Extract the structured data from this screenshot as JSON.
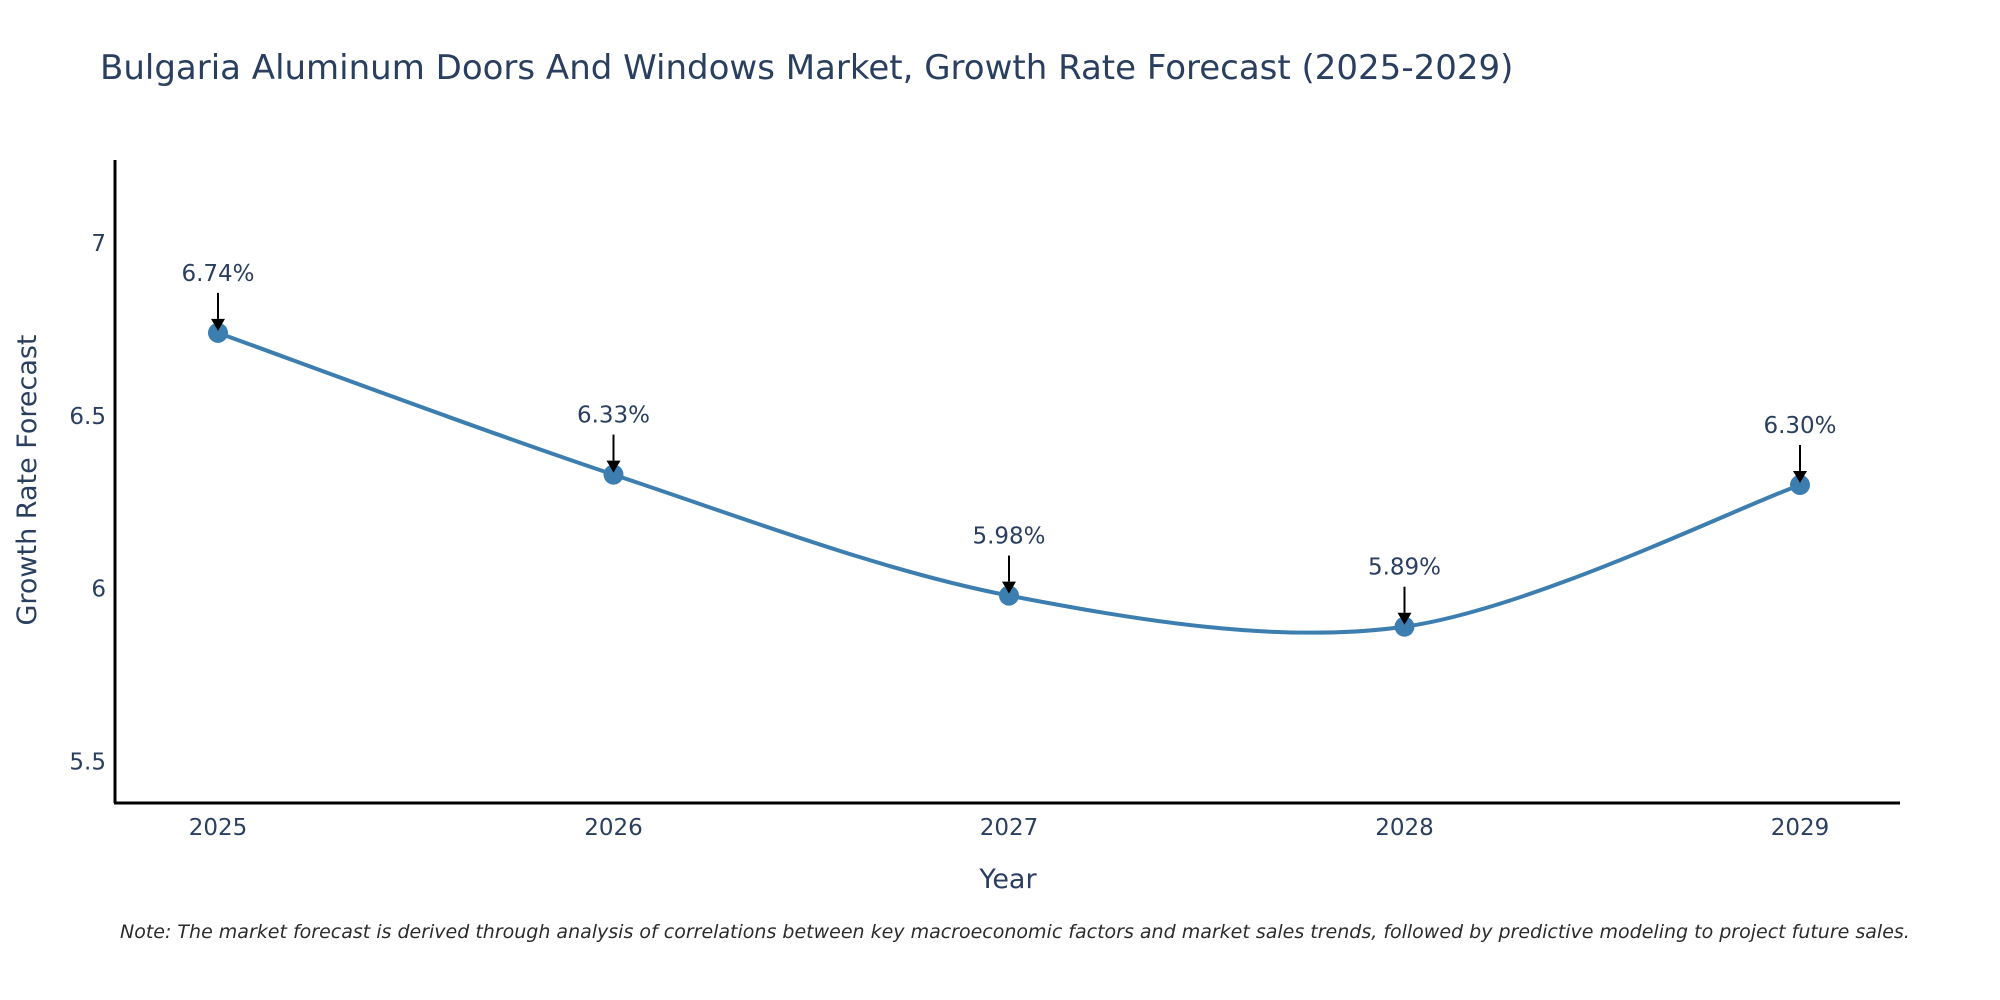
{
  "chart_data": {
    "type": "line",
    "title": "Bulgaria Aluminum Doors And Windows Market, Growth Rate Forecast (2025-2029)",
    "xlabel": "Year",
    "ylabel": "Growth Rate Forecast",
    "x": [
      "2025",
      "2026",
      "2027",
      "2028",
      "2029"
    ],
    "series": [
      {
        "name": "Growth Rate Forecast",
        "values": [
          6.74,
          6.33,
          5.98,
          5.89,
          6.3
        ],
        "labels": [
          "6.74%",
          "6.33%",
          "5.98%",
          "5.89%",
          "6.30%"
        ],
        "color": "#3d7eb0"
      }
    ],
    "ylim": [
      5.38,
      7.24
    ],
    "yticks": [
      5.5,
      6,
      6.5,
      7
    ],
    "ytick_labels": [
      "5.5",
      "6",
      "6.5",
      "7"
    ],
    "grid": false,
    "line_shape": "spline",
    "arrow_color": "#000000",
    "axis_color": "#000000"
  },
  "note": "Note: The market forecast is derived through analysis of correlations between key macroeconomic factors and market sales trends, followed by predictive modeling to project future sales."
}
